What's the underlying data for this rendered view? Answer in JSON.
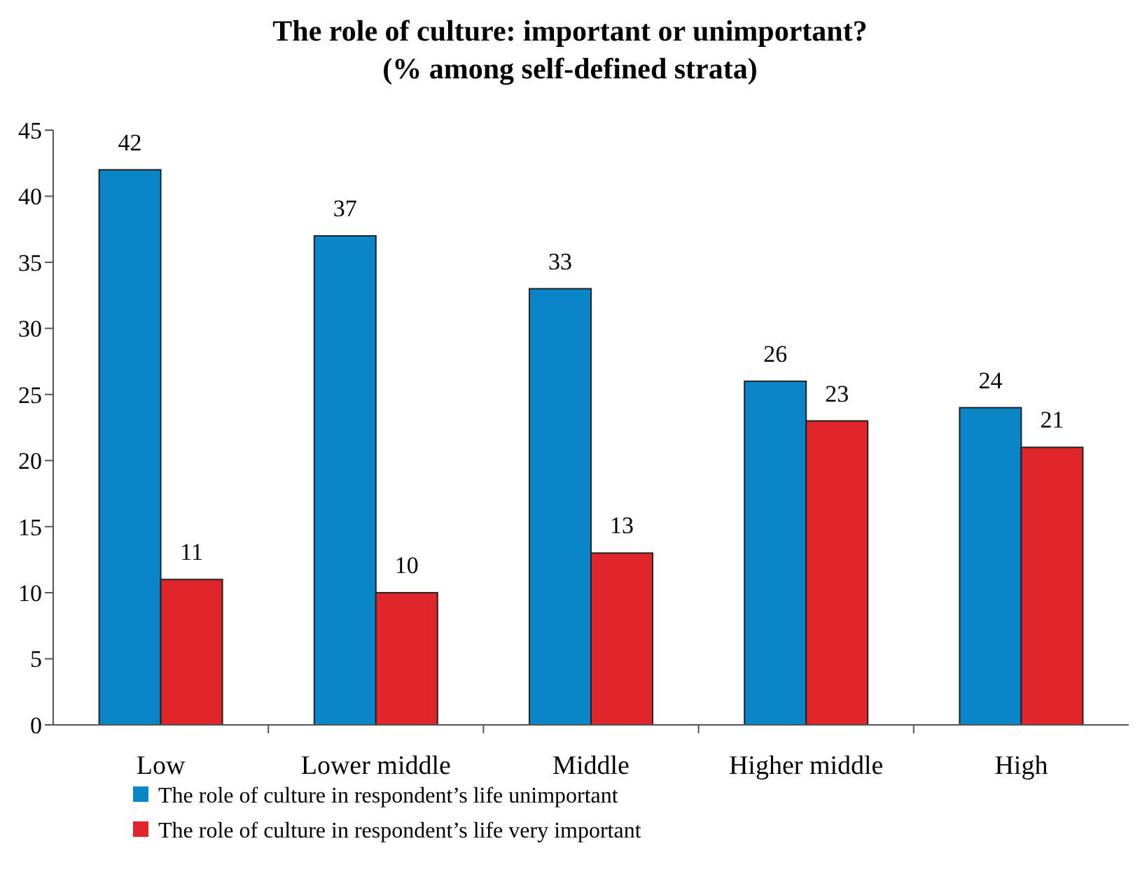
{
  "chart_data": {
    "type": "bar",
    "title": "The role of culture: important or unimportant?",
    "subtitle": "(% among self-defined strata)",
    "categories": [
      "Low",
      "Lower middle",
      "Middle",
      "Higher middle",
      "High"
    ],
    "series": [
      {
        "name": "The role of culture in respondent’s life unimportant",
        "color": "#0a86c8",
        "values": [
          42,
          37,
          33,
          26,
          24
        ]
      },
      {
        "name": "The role of culture in respondent’s life very important",
        "color": "#e0262b",
        "values": [
          11,
          10,
          13,
          23,
          21
        ]
      }
    ],
    "ylim": [
      0,
      45
    ],
    "yticks": [
      0,
      5,
      10,
      15,
      20,
      25,
      30,
      35,
      40,
      45
    ],
    "grid": false,
    "legend": "bottom",
    "data_labels": true
  }
}
